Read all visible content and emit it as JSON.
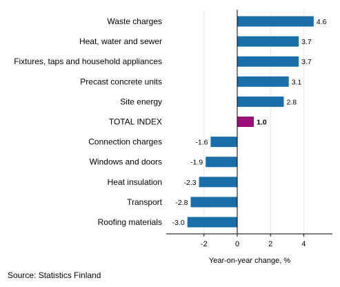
{
  "chart_data": {
    "type": "bar",
    "orientation": "horizontal",
    "categories": [
      "Waste charges",
      "Heat, water and sewer",
      "Fixtures, taps and household appliances",
      "Precast concrete units",
      "Site energy",
      "TOTAL INDEX",
      "Connection charges",
      "Windows and doors",
      "Heat insulation",
      "Transport",
      "Roofing materials"
    ],
    "values": [
      4.6,
      3.7,
      3.7,
      3.1,
      2.8,
      1.0,
      -1.6,
      -1.9,
      -2.3,
      -2.8,
      -3.0
    ],
    "value_labels": [
      "4.6",
      "3.7",
      "3.7",
      "3.1",
      "2.8",
      "1.0",
      "-1.6",
      "-1.9",
      "-2.3",
      "-2.8",
      "-3.0"
    ],
    "highlight_category": "TOTAL INDEX",
    "xlabel": "Year-on-year change, %",
    "xlim": [
      -4.2,
      5.8
    ],
    "xticks": [
      -2,
      0,
      2,
      4
    ],
    "xtick_labels": [
      "-2",
      "0",
      "2",
      "4"
    ],
    "grid": "vertical",
    "legend": "none",
    "colors": {
      "bar": "#1a6fa9",
      "highlight": "#9c0f78",
      "grid": "#e6e6e6",
      "axis": "#000000"
    }
  },
  "source": "Source: Statistics Finland"
}
